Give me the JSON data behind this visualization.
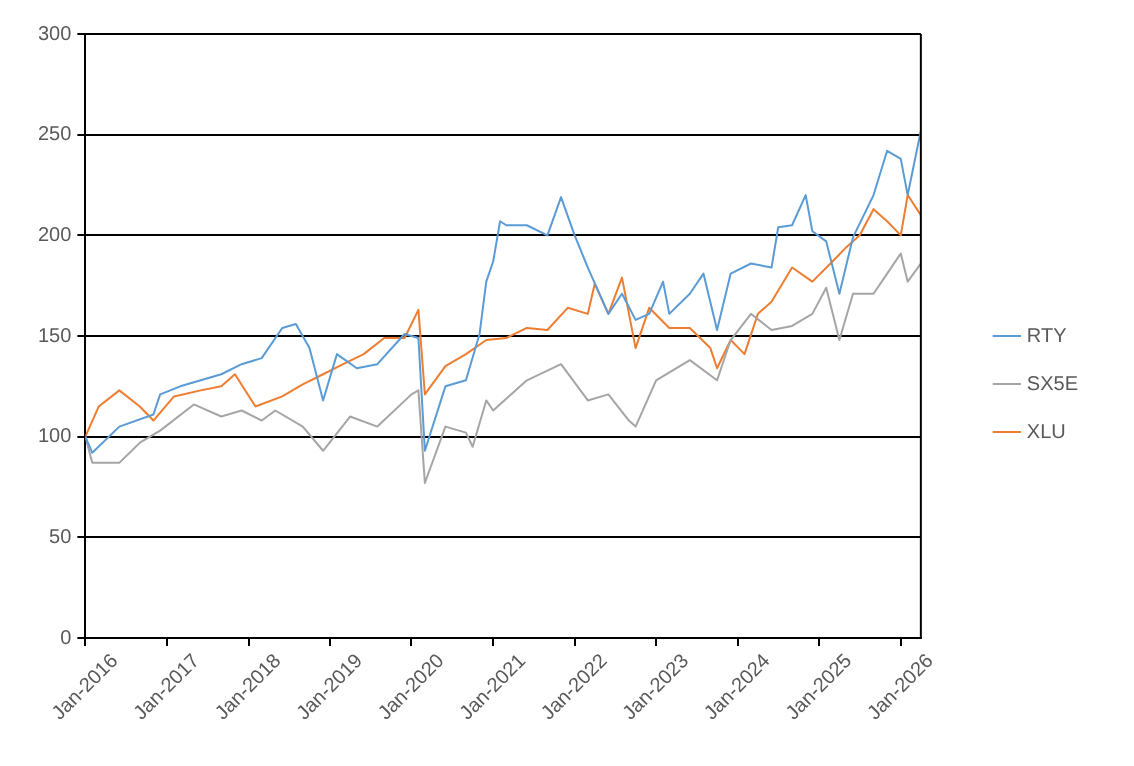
{
  "chart_data": {
    "type": "line",
    "x": [
      "2016-01",
      "2016-02",
      "2016-03",
      "2016-06",
      "2016-09",
      "2016-11",
      "2016-12",
      "2017-02",
      "2017-03",
      "2017-05",
      "2017-06",
      "2017-09",
      "2017-11",
      "2017-12",
      "2018-02",
      "2018-03",
      "2018-05",
      "2018-06",
      "2018-08",
      "2018-09",
      "2018-10",
      "2018-12",
      "2019-02",
      "2019-03",
      "2019-04",
      "2019-05",
      "2019-06",
      "2019-08",
      "2019-09",
      "2019-12",
      "2020-01",
      "2020-02",
      "2020-03",
      "2020-06",
      "2020-09",
      "2020-10",
      "2020-11",
      "2020-12",
      "2021-01",
      "2021-02",
      "2021-03",
      "2021-06",
      "2021-09",
      "2021-11",
      "2021-12",
      "2022-01",
      "2022-03",
      "2022-04",
      "2022-06",
      "2022-08",
      "2022-09",
      "2022-10",
      "2022-12",
      "2023-01",
      "2023-02",
      "2023-03",
      "2023-06",
      "2023-08",
      "2023-09",
      "2023-10",
      "2023-12",
      "2024-02",
      "2024-03",
      "2024-04",
      "2024-06",
      "2024-07",
      "2024-09",
      "2024-11",
      "2024-12",
      "2025-02",
      "2025-03",
      "2025-04",
      "2025-05",
      "2025-06",
      "2025-07",
      "2025-09",
      "2025-11",
      "2026-01",
      "2026-02",
      "2026-04"
    ],
    "series": [
      {
        "name": "RTY",
        "color": "#5b9bd5",
        "values": [
          100,
          92,
          null,
          105,
          null,
          111,
          121,
          null,
          125,
          null,
          128,
          131,
          null,
          136,
          null,
          139,
          null,
          154,
          156,
          null,
          144,
          118,
          141,
          null,
          null,
          134,
          null,
          136,
          null,
          151,
          null,
          149,
          93,
          125,
          128,
          null,
          151,
          177,
          187,
          207,
          205,
          205,
          200,
          219,
          null,
          200,
          184,
          null,
          161,
          171,
          null,
          158,
          161,
          null,
          177,
          161,
          171,
          181,
          null,
          153,
          181,
          null,
          186,
          null,
          184,
          204,
          205,
          220,
          202,
          197,
          null,
          171,
          null,
          199,
          null,
          220,
          242,
          238,
          220,
          252
        ]
      },
      {
        "name": "SX5E",
        "color": "#a5a5a5",
        "values": [
          100,
          87,
          null,
          87,
          97,
          null,
          103,
          null,
          null,
          116,
          null,
          110,
          null,
          113,
          null,
          108,
          113,
          null,
          null,
          105,
          null,
          93,
          null,
          null,
          110,
          null,
          null,
          105,
          null,
          null,
          121,
          123,
          77,
          105,
          102,
          95,
          null,
          118,
          113,
          null,
          null,
          128,
          null,
          136,
          null,
          null,
          118,
          null,
          121,
          null,
          108,
          105,
          null,
          128,
          null,
          null,
          138,
          null,
          null,
          128,
          148,
          null,
          161,
          null,
          153,
          null,
          155,
          null,
          161,
          174,
          null,
          148,
          null,
          171,
          null,
          171,
          181,
          191,
          177,
          186
        ]
      },
      {
        "name": "XLU",
        "color": "#ed7d31",
        "values": [
          100,
          null,
          115,
          123,
          115,
          108,
          null,
          120,
          null,
          null,
          123,
          125,
          131,
          null,
          115,
          null,
          null,
          120,
          null,
          126,
          null,
          131,
          null,
          136,
          null,
          null,
          141,
          null,
          149,
          149,
          null,
          163,
          121,
          135,
          141,
          null,
          null,
          148,
          null,
          null,
          149,
          154,
          153,
          null,
          164,
          null,
          161,
          176,
          161,
          179,
          null,
          144,
          164,
          null,
          null,
          154,
          154,
          null,
          144,
          134,
          148,
          141,
          null,
          161,
          167,
          null,
          184,
          null,
          177,
          null,
          187,
          null,
          194,
          null,
          200,
          213,
          207,
          200,
          220,
          210
        ]
      }
    ],
    "xlim": [
      "2016-01",
      "2026-04"
    ],
    "xticks": [
      {
        "value": "2016-01",
        "label": "Jan-2016"
      },
      {
        "value": "2017-01",
        "label": "Jan-2017"
      },
      {
        "value": "2018-01",
        "label": "Jan-2018"
      },
      {
        "value": "2019-01",
        "label": "Jan-2019"
      },
      {
        "value": "2020-01",
        "label": "Jan-2020"
      },
      {
        "value": "2021-01",
        "label": "Jan-2021"
      },
      {
        "value": "2022-01",
        "label": "Jan-2022"
      },
      {
        "value": "2023-01",
        "label": "Jan-2023"
      },
      {
        "value": "2024-01",
        "label": "Jan-2024"
      },
      {
        "value": "2025-01",
        "label": "Jan-2025"
      },
      {
        "value": "2026-01",
        "label": "Jan-2026"
      }
    ],
    "ylim": [
      0,
      300
    ],
    "yticks": [
      0,
      50,
      100,
      150,
      200,
      250,
      300
    ],
    "grid": "y",
    "legend": "right",
    "marker": "none",
    "line_style": "solid"
  }
}
